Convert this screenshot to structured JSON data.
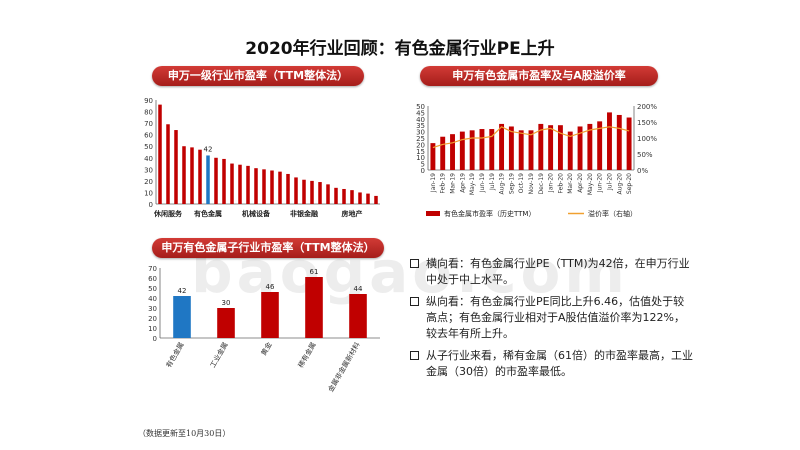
{
  "title": "2020年行业回顾：有色金属行业PE上升",
  "colors": {
    "red": "#c00000",
    "blue": "#1f77c4",
    "orange": "#f0a030"
  },
  "watermark": "baogao.com",
  "footnote": "（数据更新至10月30日）",
  "panels": {
    "p1": "申万一级行业市盈率（TTM整体法）",
    "p2": "申万有色金属市盈率及与A股溢价率",
    "p3": "申万有色金属子行业市盈率（TTM整体法）"
  },
  "bullets": [
    "横向看：有色金属行业PE（TTM)为42倍，在申万行业中处于中上水平。",
    "纵向看：有色金属行业PE同比上升6.46，估值处于较高点；有色金属行业相对于A股估值溢价率为122%，较去年有所上升。",
    "从子行业来看，稀有金属（61倍）的市盈率最高，工业金属（30倍）的市盈率最低。"
  ],
  "chart_data": [
    {
      "type": "bar",
      "title": "申万一级行业市盈率（TTM整体法）",
      "ylim": [
        0,
        90
      ],
      "yticks": [
        0,
        10,
        20,
        30,
        40,
        50,
        60,
        70,
        80,
        90
      ],
      "values": [
        86,
        69,
        64,
        50,
        49,
        47,
        42,
        40,
        39,
        35,
        34,
        33,
        31,
        30,
        29,
        28,
        26,
        23,
        21,
        20,
        19,
        17,
        14,
        13,
        12,
        10,
        9,
        7
      ],
      "highlight_index": 6,
      "highlight_label": "42",
      "xlabels": [
        {
          "index": 1,
          "text": "休闲服务"
        },
        {
          "index": 6,
          "text": "有色金属"
        },
        {
          "index": 12,
          "text": "机械设备"
        },
        {
          "index": 18,
          "text": "非银金融"
        },
        {
          "index": 24,
          "text": "房地产"
        }
      ]
    },
    {
      "type": "bar+line",
      "title": "申万有色金属市盈率及与A股溢价率",
      "categories": [
        "Jan-19",
        "Feb-19",
        "Mar-19",
        "Apr-19",
        "May-19",
        "Jun-19",
        "Jul-19",
        "Aug-19",
        "Sep-19",
        "Oct-19",
        "Nov-19",
        "Dec-19",
        "Jan-20",
        "Feb-20",
        "Mar-20",
        "Apr-20",
        "May-20",
        "Jun-20",
        "Jul-20",
        "Aug-20",
        "Sep-20"
      ],
      "y_left": {
        "ticks": [
          0,
          5,
          10,
          15,
          20,
          25,
          30,
          35,
          40,
          45,
          50
        ],
        "range": [
          0,
          50
        ]
      },
      "y_right": {
        "ticks": [
          "0%",
          "50%",
          "100%",
          "150%",
          "200%"
        ],
        "range": [
          0,
          200
        ]
      },
      "series": [
        {
          "name": "有色金属市盈率（历史TTM）",
          "type": "bar",
          "values": [
            21,
            26,
            28,
            30,
            31,
            32,
            32,
            36,
            34,
            31,
            31,
            36,
            35,
            35,
            30,
            34,
            36,
            38,
            45,
            43,
            41
          ]
        },
        {
          "name": "溢价率（右轴）",
          "type": "line",
          "values": [
            70,
            80,
            85,
            95,
            100,
            100,
            105,
            135,
            120,
            115,
            110,
            125,
            130,
            115,
            105,
            115,
            125,
            130,
            135,
            130,
            122
          ]
        }
      ]
    },
    {
      "type": "bar",
      "title": "申万有色金属子行业市盈率（TTM整体法）",
      "categories": [
        "有色金属",
        "工业金属",
        "黄金",
        "稀有金属",
        "金属非金属新材料"
      ],
      "values": [
        42,
        30,
        46,
        61,
        44
      ],
      "value_labels": [
        "42",
        "30",
        "46",
        "61",
        "44"
      ],
      "ylim": [
        0,
        70
      ],
      "yticks": [
        0,
        10,
        20,
        30,
        40,
        50,
        60,
        70
      ],
      "bar_colors": [
        "#1f77c4",
        "#c00000",
        "#c00000",
        "#c00000",
        "#c00000"
      ]
    }
  ]
}
